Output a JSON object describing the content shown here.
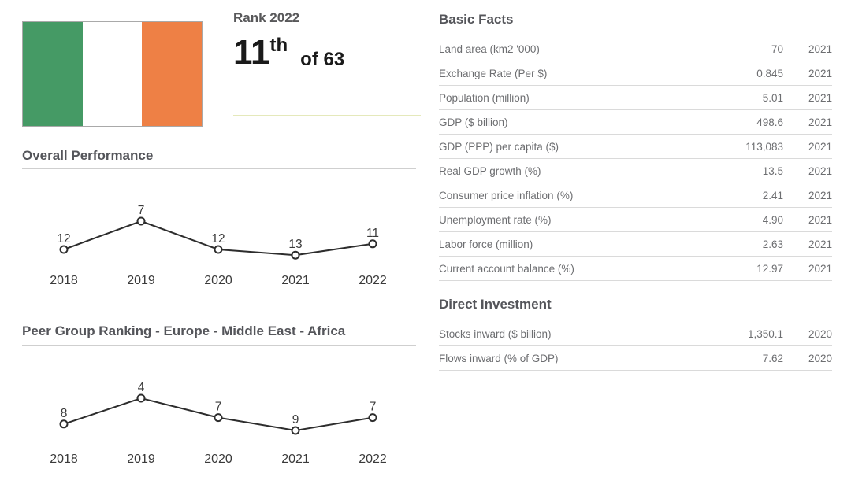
{
  "country": {
    "flag_name": "ireland-flag"
  },
  "rank": {
    "label": "Rank 2022",
    "value": "11",
    "ordinal": "th",
    "of_total": "of 63"
  },
  "chart_data": [
    {
      "type": "line",
      "title": "Overall Performance",
      "categories": [
        "2018",
        "2019",
        "2020",
        "2021",
        "2022"
      ],
      "values": [
        12,
        7,
        12,
        13,
        11
      ],
      "ylabel": "rank",
      "y_inverted": true,
      "point_labels": true,
      "grid": false,
      "legend": "none"
    },
    {
      "type": "line",
      "title": "Peer Group Ranking - Europe - Middle East - Africa",
      "categories": [
        "2018",
        "2019",
        "2020",
        "2021",
        "2022"
      ],
      "values": [
        8,
        4,
        7,
        9,
        7
      ],
      "ylabel": "rank",
      "y_inverted": true,
      "point_labels": true,
      "grid": false,
      "legend": "none"
    }
  ],
  "basic_facts": {
    "title": "Basic Facts",
    "rows": [
      {
        "label": "Land area (km2 '000)",
        "value": "70",
        "year": "2021"
      },
      {
        "label": "Exchange Rate (Per $)",
        "value": "0.845",
        "year": "2021"
      },
      {
        "label": "Population (million)",
        "value": "5.01",
        "year": "2021"
      },
      {
        "label": "GDP ($ billion)",
        "value": "498.6",
        "year": "2021"
      },
      {
        "label": "GDP (PPP) per capita ($)",
        "value": "113,083",
        "year": "2021"
      },
      {
        "label": "Real GDP growth (%)",
        "value": "13.5",
        "year": "2021"
      },
      {
        "label": "Consumer price inflation (%)",
        "value": "2.41",
        "year": "2021"
      },
      {
        "label": "Unemployment rate (%)",
        "value": "4.90",
        "year": "2021"
      },
      {
        "label": "Labor force (million)",
        "value": "2.63",
        "year": "2021"
      },
      {
        "label": "Current account balance (%)",
        "value": "12.97",
        "year": "2021"
      }
    ]
  },
  "direct_investment": {
    "title": "Direct Investment",
    "rows": [
      {
        "label": "Stocks inward ($ billion)",
        "value": "1,350.1",
        "year": "2020"
      },
      {
        "label": "Flows inward (% of GDP)",
        "value": "7.62",
        "year": "2020"
      }
    ]
  },
  "colors": {
    "flag_green": "#459a65",
    "flag_white": "#ffffff",
    "flag_orange": "#ee8045",
    "accent_divider": "#e5e9bb",
    "heading_text": "#54555a",
    "table_text": "#6d6e71",
    "row_divider": "#dadada",
    "chart_line": "#2d2d2d",
    "chart_label_text": "#3a3a3a"
  }
}
